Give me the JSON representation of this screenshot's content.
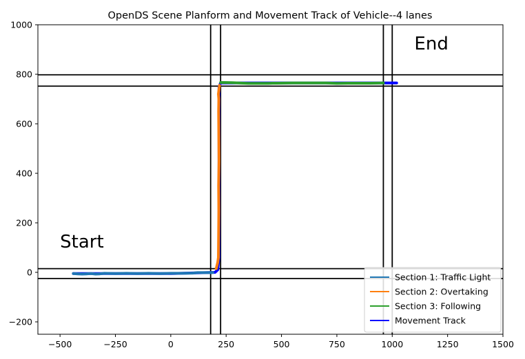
{
  "chart_data": {
    "type": "line",
    "title": "OpenDS Scene Planform and Movement Track of Vehicle--4 lanes",
    "xlim": [
      -600,
      1500
    ],
    "ylim": [
      -250,
      1000
    ],
    "xticks": [
      -500,
      -250,
      0,
      250,
      500,
      750,
      1000,
      1250,
      1500
    ],
    "yticks": [
      -200,
      0,
      200,
      400,
      600,
      800,
      1000
    ],
    "road_lines": {
      "vertical_x": [
        180,
        225,
        960,
        1000
      ],
      "horizontal_y": [
        -25,
        15,
        752,
        798
      ],
      "color": "#000000"
    },
    "annotations": [
      {
        "text": "Start",
        "x": -500,
        "y": 100
      },
      {
        "text": "End",
        "x": 1100,
        "y": 900
      }
    ],
    "series": [
      {
        "name": "Movement Track",
        "color": "#0000ff",
        "x": [
          -440,
          0,
          200,
          212,
          218,
          218,
          225,
          960,
          1020
        ],
        "y": [
          -5,
          -5,
          0,
          10,
          60,
          750,
          765,
          765,
          765
        ]
      },
      {
        "name": "Section 1: Traffic Light",
        "color": "#1f77b4",
        "x": [
          -440,
          -420,
          -400,
          -380,
          -360,
          -340,
          -320,
          -300,
          -250,
          -200,
          -150,
          -100,
          -50,
          0,
          50,
          100,
          120,
          150,
          190
        ],
        "y": [
          -5,
          -6,
          -7,
          -6,
          -5,
          -7,
          -6,
          -4,
          -5,
          -4,
          -5,
          -4,
          -5,
          -4,
          -4,
          -3,
          -1,
          -1,
          -1
        ]
      },
      {
        "name": "Section 2: Overtaking",
        "color": "#ff7f0e",
        "x": [
          205,
          212,
          215,
          216,
          217,
          216,
          217,
          218,
          217,
          216,
          217,
          215,
          218,
          220
        ],
        "y": [
          15,
          40,
          60,
          150,
          250,
          350,
          400,
          450,
          550,
          650,
          700,
          720,
          740,
          755
        ]
      },
      {
        "name": "Section 3: Following",
        "color": "#2ca02c",
        "x": [
          225,
          280,
          330,
          350,
          400,
          440,
          460,
          480,
          550,
          650,
          700,
          750,
          800,
          900,
          960
        ],
        "y": [
          767,
          766,
          764,
          763,
          763,
          763,
          764,
          764,
          765,
          765,
          765,
          763,
          764,
          764,
          765
        ]
      }
    ],
    "legend": {
      "placement": "lower right",
      "entries": [
        {
          "label": "Section 1: Traffic Light",
          "color": "#1f77b4"
        },
        {
          "label": "Section 2: Overtaking",
          "color": "#ff7f0e"
        },
        {
          "label": "Section 3: Following",
          "color": "#2ca02c"
        },
        {
          "label": "Movement Track",
          "color": "#0000ff"
        }
      ]
    }
  }
}
